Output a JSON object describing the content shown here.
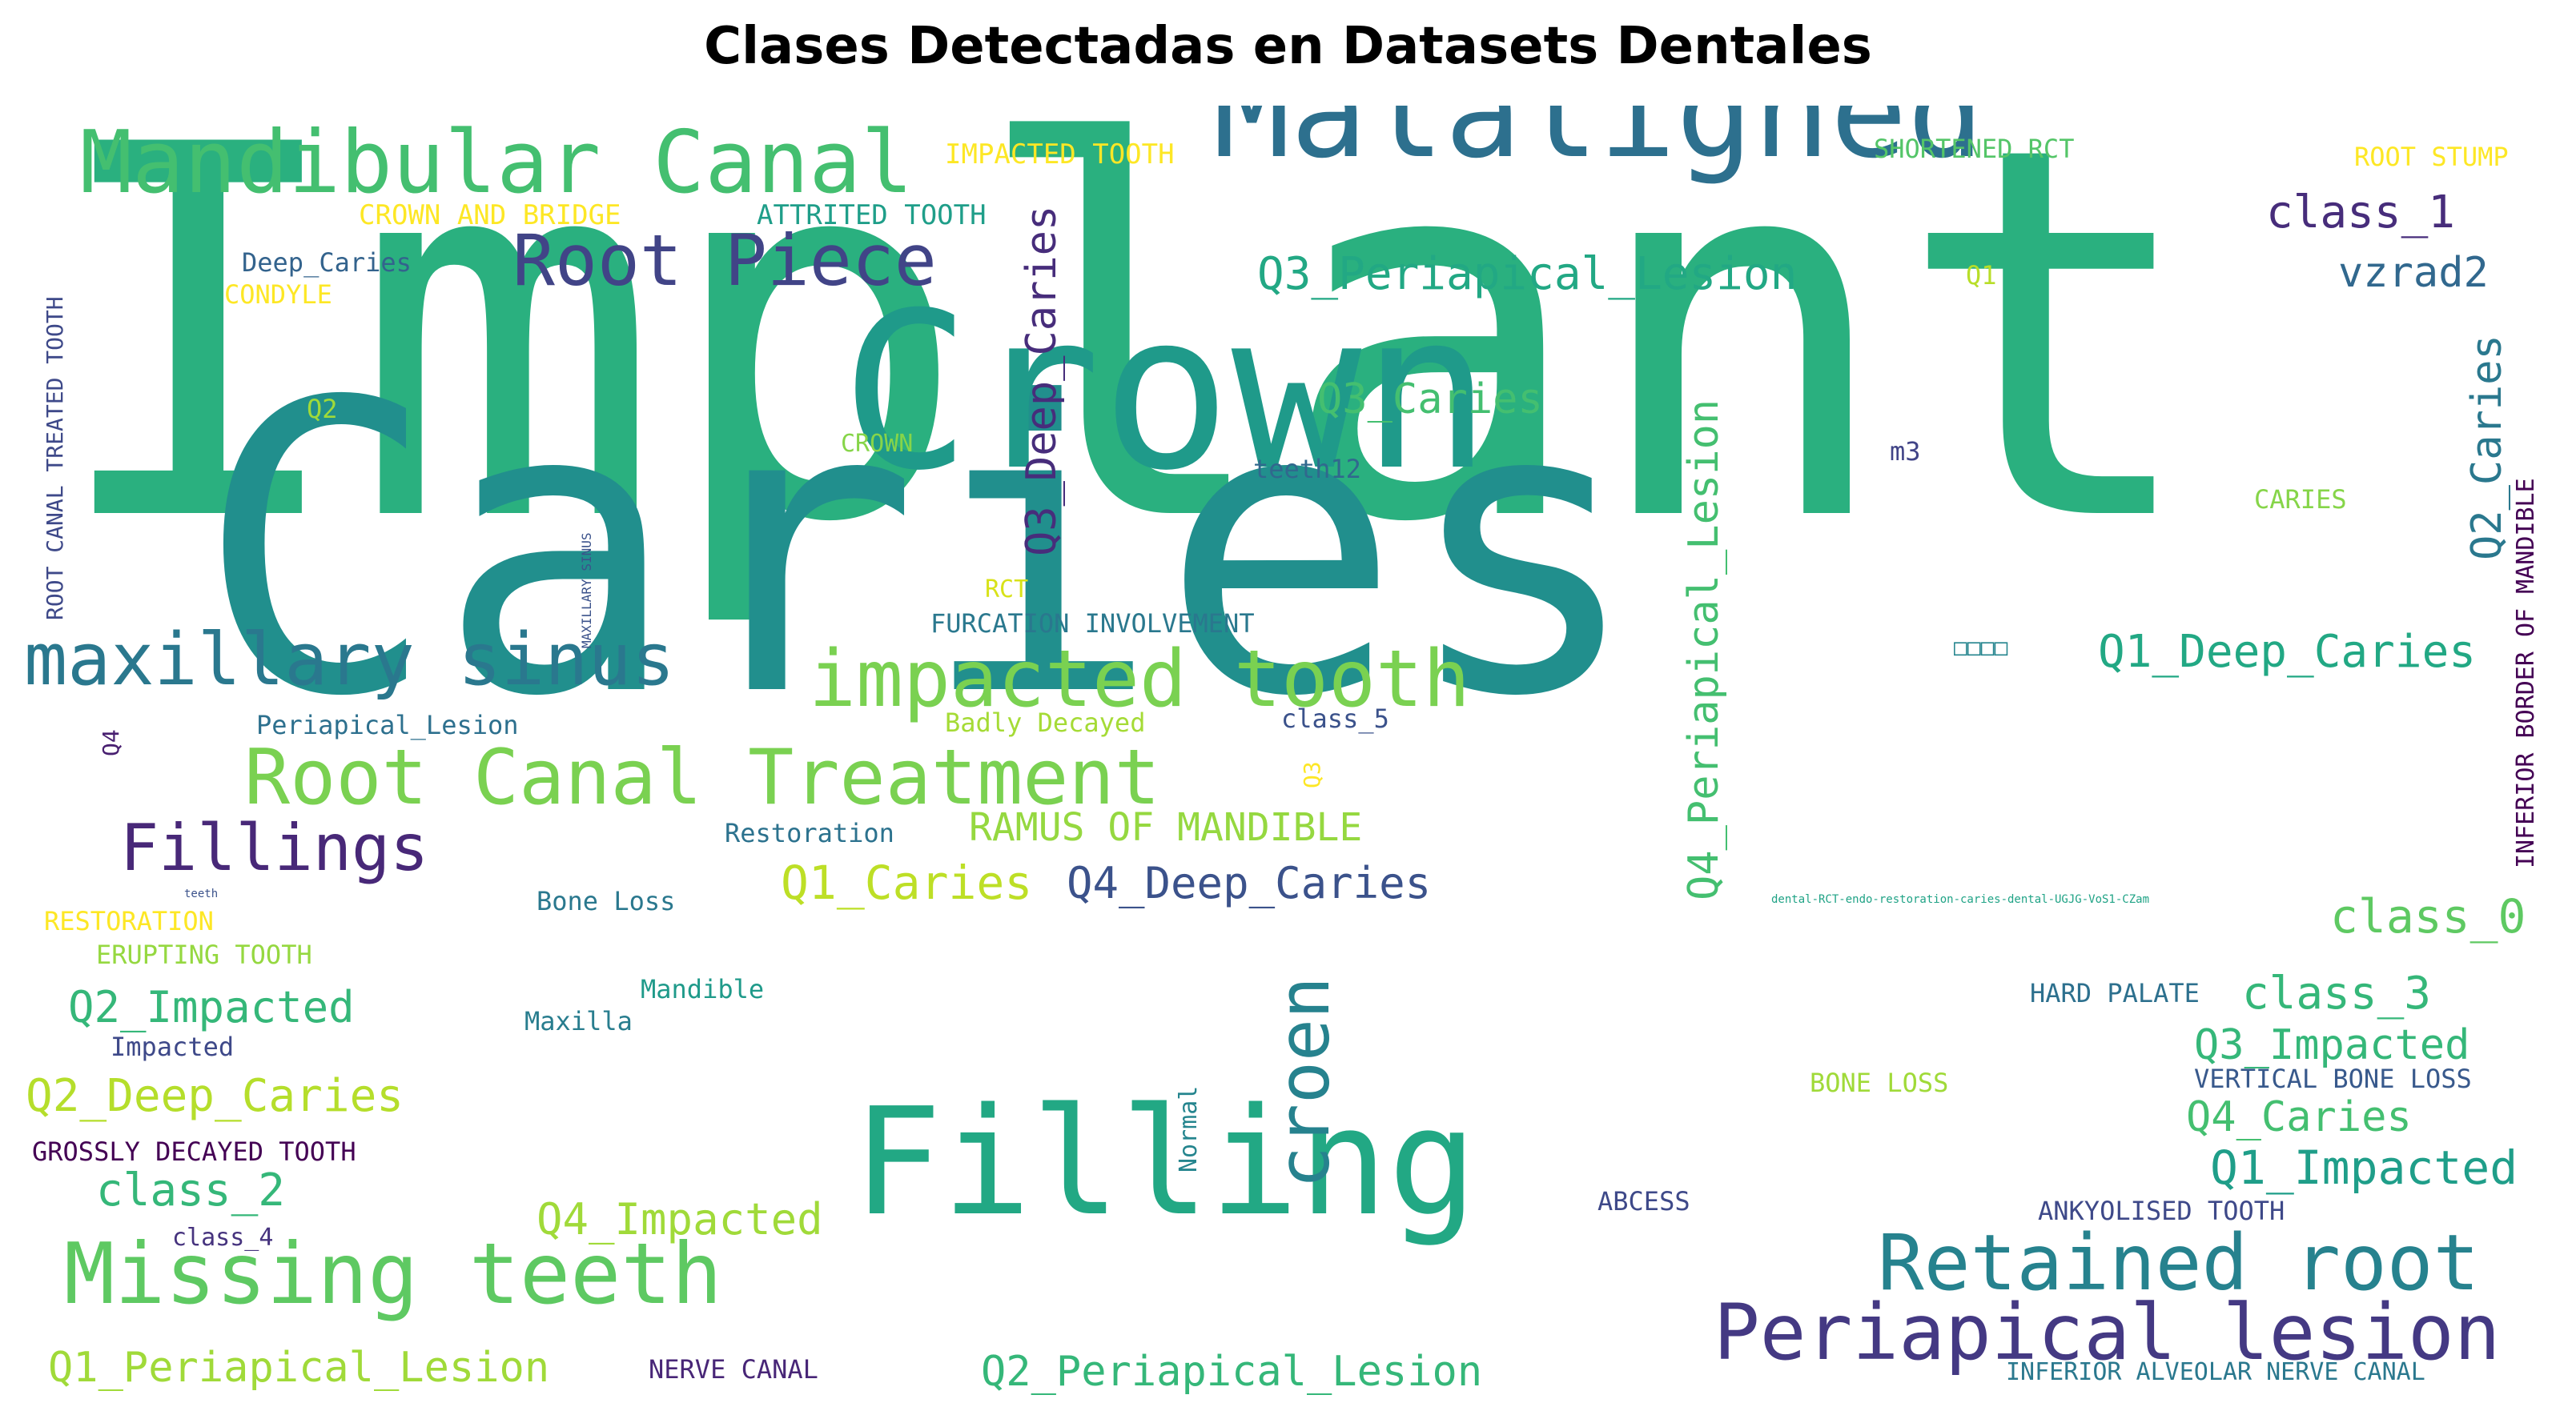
{
  "title": "Clases Detectadas en Datasets Dentales",
  "words": [
    {
      "text": "Implant",
      "color": "#2ab07f"
    },
    {
      "text": "Caries",
      "color": "#218f8d"
    },
    {
      "text": "Crown",
      "color": "#1f9a8a"
    },
    {
      "text": "Malaligned",
      "color": "#2d708e"
    },
    {
      "text": "Filling",
      "color": "#22a884"
    },
    {
      "text": "Mandibular Canal",
      "color": "#44bf70"
    },
    {
      "text": "Root Piece",
      "color": "#414487"
    },
    {
      "text": "maxillary sinus",
      "color": "#2a788e"
    },
    {
      "text": "impacted tooth",
      "color": "#7ad151"
    },
    {
      "text": "Root Canal Treatment",
      "color": "#7ad151"
    },
    {
      "text": "Fillings",
      "color": "#482878"
    },
    {
      "text": "Missing teeth",
      "color": "#5ec962"
    },
    {
      "text": "Retained root",
      "color": "#26828e"
    },
    {
      "text": "Periapical lesion",
      "color": "#443983"
    },
    {
      "text": "croen",
      "color": "#26828e"
    },
    {
      "text": "Q3_Periapical_Lesion",
      "color": "#22a884"
    },
    {
      "text": "class_1",
      "color": "#472d7b"
    },
    {
      "text": "vzrad2",
      "color": "#31688e"
    },
    {
      "text": "Q3_Deep_Caries",
      "color": "#472d7b"
    },
    {
      "text": "Q3_Caries",
      "color": "#44bf70"
    },
    {
      "text": "Q4_Periapical_Lesion",
      "color": "#44bf70"
    },
    {
      "text": "Q2_Caries",
      "color": "#2a788e"
    },
    {
      "text": "Q1_Deep_Caries",
      "color": "#22a884"
    },
    {
      "text": "Q1_Caries",
      "color": "#bddf26"
    },
    {
      "text": "Q4_Deep_Caries",
      "color": "#3b528b"
    },
    {
      "text": "class_0",
      "color": "#5ec962"
    },
    {
      "text": "class_3",
      "color": "#35b779"
    },
    {
      "text": "Q3_Impacted",
      "color": "#35b779"
    },
    {
      "text": "Q4_Caries",
      "color": "#44bf70"
    },
    {
      "text": "Q1_Impacted",
      "color": "#1f9e89"
    },
    {
      "text": "Q2_Impacted",
      "color": "#35b779"
    },
    {
      "text": "Q2_Deep_Caries",
      "color": "#b5de2b"
    },
    {
      "text": "class_2",
      "color": "#35b779"
    },
    {
      "text": "Q4_Impacted",
      "color": "#a0da39"
    },
    {
      "text": "Q1_Periapical_Lesion",
      "color": "#a0da39"
    },
    {
      "text": "Q2_Periapical_Lesion",
      "color": "#35b779"
    },
    {
      "text": "RAMUS OF MANDIBLE",
      "color": "#95d840"
    },
    {
      "text": "IMPACTED TOOTH",
      "color": "#fde725"
    },
    {
      "text": "SHORTENED RCT",
      "color": "#54c568"
    },
    {
      "text": "ROOT STUMP",
      "color": "#fde725"
    },
    {
      "text": "CROWN AND BRIDGE",
      "color": "#fde725"
    },
    {
      "text": "ATTRITED TOOTH",
      "color": "#1f9e89"
    },
    {
      "text": "ROOT CANAL TREATED TOOTH",
      "color": "#3e4989"
    },
    {
      "text": "INFERIOR BORDER OF MANDIBLE",
      "color": "#440154"
    },
    {
      "text": "Deep_Caries",
      "color": "#33638d"
    },
    {
      "text": "CONDYLE",
      "color": "#fde725"
    },
    {
      "text": "Q1",
      "color": "#b8de29"
    },
    {
      "text": "Q2",
      "color": "#a0da39"
    },
    {
      "text": "CROWN",
      "color": "#86d549"
    },
    {
      "text": "teeth12",
      "color": "#31688e"
    },
    {
      "text": "m3",
      "color": "#414487"
    },
    {
      "text": "CARIES",
      "color": "#86d549"
    },
    {
      "text": "MAXILLARY SINUS",
      "color": "#3b528b"
    },
    {
      "text": "RCT",
      "color": "#d8e219"
    },
    {
      "text": "FURCATION INVOLVEMENT",
      "color": "#2a788e"
    },
    {
      "text": "Periapical_Lesion",
      "color": "#2d708e"
    },
    {
      "text": "Q4",
      "color": "#481f70"
    },
    {
      "text": "Badly Decayed",
      "color": "#a5db36"
    },
    {
      "text": "class_5",
      "color": "#3b528b"
    },
    {
      "text": "Q3",
      "color": "#fde725"
    },
    {
      "text": "Restoration",
      "color": "#2c728e"
    },
    {
      "text": "teeth",
      "color": "#3b528b"
    },
    {
      "text": "Bone Loss",
      "color": "#2a788e"
    },
    {
      "text": "dental-RCT-endo-restoration-caries-dental-UGJG-VoS1-CZam",
      "color": "#20a386"
    },
    {
      "text": "RESTORATION",
      "color": "#fde725"
    },
    {
      "text": "ERUPTING TOOTH",
      "color": "#95d840"
    },
    {
      "text": "Mandible",
      "color": "#1f9a8a"
    },
    {
      "text": "Maxilla",
      "color": "#287d8e"
    },
    {
      "text": "HARD PALATE",
      "color": "#2d708e"
    },
    {
      "text": "Impacted",
      "color": "#3e4989"
    },
    {
      "text": "Normal",
      "color": "#25858e"
    },
    {
      "text": "BONE LOSS",
      "color": "#a0da39"
    },
    {
      "text": "VERTICAL BONE LOSS",
      "color": "#38598c"
    },
    {
      "text": "GROSSLY DECAYED TOOTH",
      "color": "#440154"
    },
    {
      "text": "class_4",
      "color": "#46337e"
    },
    {
      "text": "ABCESS",
      "color": "#3e4989"
    },
    {
      "text": "ANKYOLISED TOOTH",
      "color": "#3e4989"
    },
    {
      "text": "NERVE CANAL",
      "color": "#482677"
    },
    {
      "text": "INFERIOR ALVEOLAR NERVE CANAL",
      "color": "#2a788e"
    },
    {
      "text": "□□□□",
      "color": "#25858e"
    }
  ]
}
